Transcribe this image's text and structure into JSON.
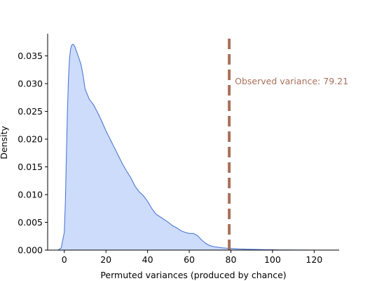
{
  "chart_data": {
    "type": "area",
    "title": "",
    "xlabel": "Permuted variances (produced by chance)",
    "ylabel": "Density",
    "xlim": [
      -8,
      132
    ],
    "ylim": [
      0,
      0.039
    ],
    "x_ticks": [
      0,
      20,
      40,
      60,
      80,
      100,
      120
    ],
    "x_tick_labels": [
      "0",
      "20",
      "40",
      "60",
      "80",
      "100",
      "120"
    ],
    "y_ticks": [
      0,
      0.005,
      0.01,
      0.015,
      0.02,
      0.025,
      0.03,
      0.035
    ],
    "y_tick_labels": [
      "0.000",
      "0.005",
      "0.010",
      "0.015",
      "0.020",
      "0.025",
      "0.030",
      "0.035"
    ],
    "grid": false,
    "legend": "none",
    "series": [
      {
        "x": [
          -3,
          -1.5,
          0,
          0.5,
          1,
          1.5,
          2,
          2.5,
          3,
          3.5,
          4,
          4.5,
          5,
          6,
          7,
          8,
          9,
          10,
          12,
          14,
          16,
          18,
          20,
          22,
          24,
          26,
          28,
          30,
          32,
          34,
          36,
          38,
          40,
          42,
          44,
          46,
          48,
          50,
          52,
          54,
          56,
          58,
          60,
          62,
          64,
          66,
          68,
          70,
          72,
          74,
          76,
          78,
          80,
          82,
          84,
          86,
          88,
          90,
          92,
          94,
          96,
          98,
          100,
          104,
          108,
          112,
          116,
          120,
          124,
          126
        ],
        "y": [
          0.0,
          0.0004,
          0.0032,
          0.0085,
          0.017,
          0.025,
          0.031,
          0.0345,
          0.0362,
          0.0369,
          0.0371,
          0.037,
          0.0367,
          0.0357,
          0.0346,
          0.0335,
          0.0315,
          0.029,
          0.0272,
          0.0262,
          0.0248,
          0.0232,
          0.0215,
          0.02,
          0.0185,
          0.017,
          0.0155,
          0.0142,
          0.013,
          0.0115,
          0.0105,
          0.0098,
          0.0088,
          0.0075,
          0.0065,
          0.006,
          0.0055,
          0.005,
          0.0044,
          0.004,
          0.0035,
          0.0032,
          0.003,
          0.003,
          0.0026,
          0.0018,
          0.0012,
          0.0008,
          0.0006,
          0.0005,
          0.0004,
          0.00035,
          0.0003,
          0.00025,
          0.0002,
          0.00018,
          0.00015,
          0.00013,
          0.00012,
          0.0001,
          8e-05,
          6e-05,
          5e-05,
          3e-05,
          2e-05,
          1e-05,
          5e-06,
          0.0,
          0.0,
          0.0
        ]
      }
    ],
    "observed": {
      "value": 79.21,
      "label": "Observed variance: 79.21"
    },
    "colors": {
      "fill": "#cddcfa",
      "line": "#4e79d6",
      "observed": "#a9705a",
      "axis": "#000000"
    }
  }
}
